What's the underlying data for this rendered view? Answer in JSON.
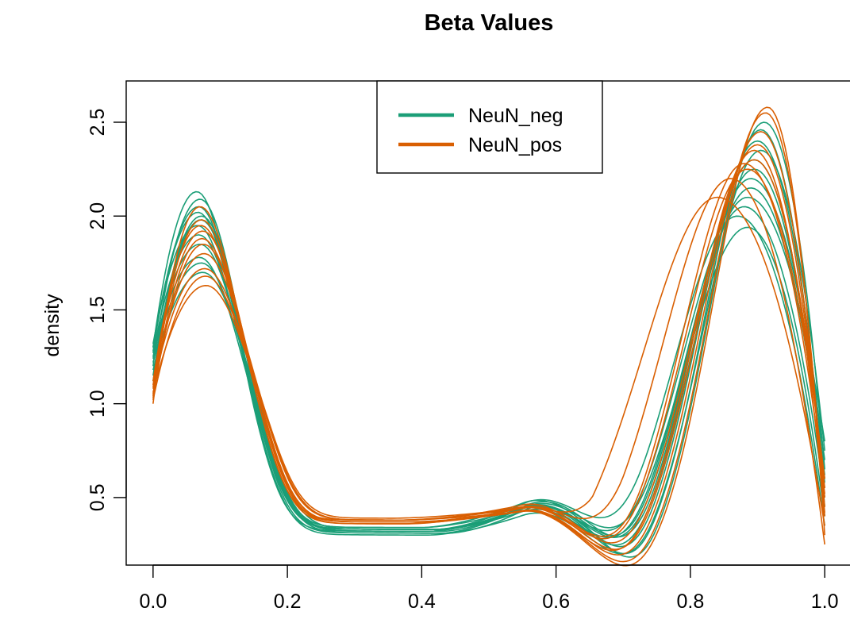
{
  "chart_data": {
    "type": "line",
    "title": "Beta Values",
    "xlabel": "",
    "ylabel": "density",
    "xlim": [
      -0.04,
      1.04
    ],
    "ylim": [
      0.14,
      2.72
    ],
    "x_ticks": [
      "0.0",
      "0.2",
      "0.4",
      "0.6",
      "0.8",
      "1.0"
    ],
    "y_ticks": [
      "0.5",
      "1.0",
      "1.5",
      "2.0",
      "2.5"
    ],
    "grid": false,
    "legend_position": "top-center",
    "colors": {
      "NeuN_neg": "#1b9e77",
      "NeuN_pos": "#d95f02"
    },
    "series": [
      {
        "name": "NeuN_neg",
        "curves": [
          {
            "l0": 1.3,
            "lh": 2.13,
            "lp": 0.065,
            "lw": 0.06,
            "lb": 0.32,
            "vx": 0.41,
            "mh": 0.55,
            "rh": 2.46,
            "rp": 0.905,
            "rw": 0.082,
            "e": 0.45
          },
          {
            "l0": 1.2,
            "lh": 2.09,
            "lp": 0.07,
            "lw": 0.061,
            "lb": 0.33,
            "vx": 0.42,
            "mh": 0.56,
            "rh": 2.4,
            "rp": 0.9,
            "rw": 0.085,
            "e": 0.6
          },
          {
            "l0": 1.28,
            "lh": 2.05,
            "lp": 0.068,
            "lw": 0.062,
            "lb": 0.31,
            "vx": 0.43,
            "mh": 0.6,
            "rh": 2.3,
            "rp": 0.895,
            "rw": 0.088,
            "e": 0.55
          },
          {
            "l0": 1.15,
            "lh": 2.0,
            "lp": 0.072,
            "lw": 0.063,
            "lb": 0.34,
            "vx": 0.4,
            "mh": 0.58,
            "rh": 2.2,
            "rp": 0.89,
            "rw": 0.09,
            "e": 0.7
          },
          {
            "l0": 1.32,
            "lh": 1.95,
            "lp": 0.066,
            "lw": 0.064,
            "lb": 0.33,
            "vx": 0.42,
            "mh": 0.52,
            "rh": 2.1,
            "rp": 0.885,
            "rw": 0.09,
            "e": 0.8
          },
          {
            "l0": 1.25,
            "lh": 1.85,
            "lp": 0.07,
            "lw": 0.066,
            "lb": 0.32,
            "vx": 0.41,
            "mh": 0.55,
            "rh": 2.05,
            "rp": 0.88,
            "rw": 0.092,
            "e": 0.5
          },
          {
            "l0": 1.22,
            "lh": 1.75,
            "lp": 0.072,
            "lw": 0.068,
            "lb": 0.32,
            "vx": 0.43,
            "mh": 0.58,
            "rh": 1.94,
            "rp": 0.885,
            "rw": 0.095,
            "e": 0.4
          },
          {
            "l0": 1.18,
            "lh": 1.7,
            "lp": 0.074,
            "lw": 0.07,
            "lb": 0.33,
            "vx": 0.42,
            "mh": 0.6,
            "rh": 2.0,
            "rp": 0.87,
            "rw": 0.095,
            "e": 0.35
          },
          {
            "l0": 1.24,
            "lh": 1.78,
            "lp": 0.069,
            "lw": 0.067,
            "lb": 0.31,
            "vx": 0.44,
            "mh": 0.57,
            "rh": 2.5,
            "rp": 0.91,
            "rw": 0.08,
            "e": 0.65
          },
          {
            "l0": 1.3,
            "lh": 2.02,
            "lp": 0.067,
            "lw": 0.062,
            "lb": 0.3,
            "vx": 0.41,
            "mh": 0.5,
            "rh": 2.35,
            "rp": 0.905,
            "rw": 0.084,
            "e": 0.75
          },
          {
            "l0": 1.12,
            "lh": 1.98,
            "lp": 0.071,
            "lw": 0.063,
            "lb": 0.34,
            "vx": 0.4,
            "mh": 0.53,
            "rh": 2.25,
            "rp": 0.895,
            "rw": 0.087,
            "e": 0.58
          },
          {
            "l0": 1.27,
            "lh": 1.9,
            "lp": 0.068,
            "lw": 0.065,
            "lb": 0.33,
            "vx": 0.43,
            "mh": 0.56,
            "rh": 2.15,
            "rp": 0.89,
            "rw": 0.089,
            "e": 0.62
          }
        ]
      },
      {
        "name": "NeuN_pos",
        "curves": [
          {
            "l0": 1.0,
            "lh": 2.05,
            "lp": 0.07,
            "lw": 0.062,
            "lb": 0.38,
            "vx": 0.37,
            "mh": 0.46,
            "rh": 2.58,
            "rp": 0.915,
            "rw": 0.08,
            "e": 0.3
          },
          {
            "l0": 1.05,
            "lh": 1.98,
            "lp": 0.072,
            "lw": 0.064,
            "lb": 0.37,
            "vx": 0.38,
            "mh": 0.47,
            "rh": 2.55,
            "rp": 0.912,
            "rw": 0.082,
            "e": 0.4
          },
          {
            "l0": 1.1,
            "lh": 1.92,
            "lp": 0.074,
            "lw": 0.065,
            "lb": 0.36,
            "vx": 0.37,
            "mh": 0.48,
            "rh": 2.45,
            "rp": 0.905,
            "rw": 0.085,
            "e": 0.45
          },
          {
            "l0": 1.03,
            "lh": 1.85,
            "lp": 0.075,
            "lw": 0.066,
            "lb": 0.37,
            "vx": 0.39,
            "mh": 0.5,
            "rh": 2.38,
            "rp": 0.9,
            "rw": 0.087,
            "e": 0.5
          },
          {
            "l0": 1.08,
            "lh": 1.8,
            "lp": 0.076,
            "lw": 0.068,
            "lb": 0.38,
            "vx": 0.38,
            "mh": 0.52,
            "rh": 2.3,
            "rp": 0.895,
            "rw": 0.09,
            "e": 0.55
          },
          {
            "l0": 1.02,
            "lh": 1.68,
            "lp": 0.078,
            "lw": 0.07,
            "lb": 0.38,
            "vx": 0.37,
            "mh": 0.49,
            "rh": 2.25,
            "rp": 0.885,
            "rw": 0.092,
            "e": 0.6
          },
          {
            "l0": 1.06,
            "lh": 1.63,
            "lp": 0.079,
            "lw": 0.071,
            "lb": 0.39,
            "vx": 0.36,
            "mh": 0.48,
            "rh": 2.1,
            "rp": 0.84,
            "rw": 0.11,
            "e": 0.35
          },
          {
            "l0": 1.12,
            "lh": 1.95,
            "lp": 0.071,
            "lw": 0.064,
            "lb": 0.36,
            "vx": 0.38,
            "mh": 0.51,
            "rh": 2.2,
            "rp": 0.86,
            "rw": 0.1,
            "e": 0.25
          },
          {
            "l0": 1.04,
            "lh": 1.88,
            "lp": 0.073,
            "lw": 0.066,
            "lb": 0.37,
            "vx": 0.39,
            "mh": 0.47,
            "rh": 2.35,
            "rp": 0.895,
            "rw": 0.086,
            "e": 0.42
          },
          {
            "l0": 1.09,
            "lh": 1.72,
            "lp": 0.077,
            "lw": 0.069,
            "lb": 0.38,
            "vx": 0.37,
            "mh": 0.5,
            "rh": 2.28,
            "rp": 0.88,
            "rw": 0.091,
            "e": 0.52
          }
        ]
      }
    ]
  }
}
